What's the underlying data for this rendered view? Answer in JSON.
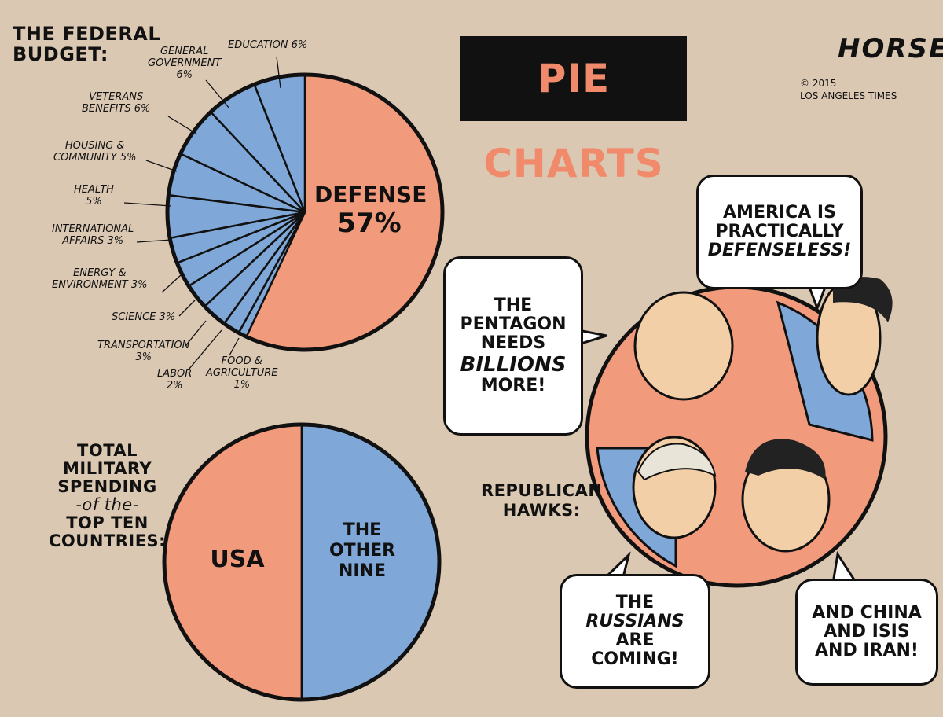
{
  "title": "PIE CHARTS",
  "signature": {
    "name": "HORSEY",
    "copyright": "© 2015",
    "publisher": "LOS ANGELES TIMES"
  },
  "colors": {
    "background": "#dbc8b2",
    "salmon": "#f29a7c",
    "blue": "#7fa7d8",
    "ink": "#111111",
    "title_text": "#f08a6a"
  },
  "chart_data": [
    {
      "type": "pie",
      "title": "THE FEDERAL BUDGET:",
      "categories": [
        "DEFENSE",
        "FOOD & AGRICULTURE",
        "LABOR",
        "TRANSPORTATION",
        "SCIENCE",
        "ENERGY & ENVIRONMENT",
        "INTERNATIONAL AFFAIRS",
        "HEALTH",
        "HOUSING & COMMUNITY",
        "VETERANS BENEFITS",
        "GENERAL GOVERNMENT",
        "EDUCATION"
      ],
      "values": [
        57,
        1,
        2,
        3,
        3,
        3,
        3,
        5,
        5,
        6,
        6,
        6
      ],
      "labels": [
        "DEFENSE 57%",
        "FOOD & AGRICULTURE 1%",
        "LABOR 2%",
        "TRANSPORTATION 3%",
        "SCIENCE 3%",
        "ENERGY & ENVIRONMENT 3%",
        "INTERNATIONAL AFFAIRS 3%",
        "HEALTH 5%",
        "HOUSING & COMMUNITY 5%",
        "VETERANS BENEFITS 6%",
        "GENERAL GOVERNMENT 6%",
        "EDUCATION 6%"
      ]
    },
    {
      "type": "pie",
      "title": "TOTAL MILITARY SPENDING -of the- TOP TEN COUNTRIES:",
      "categories": [
        "USA",
        "THE OTHER NINE"
      ],
      "values": [
        50,
        50
      ]
    }
  ],
  "budget_title_lines": [
    "THE FEDERAL",
    "BUDGET:"
  ],
  "military_title_lines": [
    "TOTAL",
    "MILITARY",
    "SPENDING",
    "-of the-",
    "TOP TEN",
    "COUNTRIES:"
  ],
  "defense_label": [
    "DEFENSE",
    "57%"
  ],
  "usa_label": "USA",
  "other_label": [
    "THE",
    "OTHER",
    "NINE"
  ],
  "small_labels": {
    "education": [
      "EDUCATION 6%"
    ],
    "general_government": [
      "GENERAL",
      "GOVERNMENT",
      "6%"
    ],
    "veterans": [
      "VETERANS",
      "BENEFITS 6%"
    ],
    "housing": [
      "HOUSING &",
      "COMMUNITY 5%"
    ],
    "health": [
      "HEALTH",
      "5%"
    ],
    "international": [
      "INTERNATIONAL",
      "AFFAIRS 3%"
    ],
    "energy": [
      "ENERGY &",
      "ENVIRONMENT 3%"
    ],
    "science": [
      "SCIENCE 3%"
    ],
    "transportation": [
      "TRANSPORTATION",
      "3%"
    ],
    "labor": [
      "LABOR",
      "2%"
    ],
    "food": [
      "FOOD &",
      "AGRICULTURE",
      "1%"
    ]
  },
  "hawks_label": [
    "REPUBLICAN",
    "HAWKS:"
  ],
  "bubbles": {
    "pentagon": [
      "THE",
      "PENTAGON",
      "NEEDS",
      "BILLIONS",
      "MORE!"
    ],
    "defenseless": [
      "AMERICA IS",
      "PRACTICALLY",
      "DEFENSELESS!"
    ],
    "russians": [
      "THE",
      "RUSSIANS",
      "ARE COMING!"
    ],
    "china": [
      "AND CHINA",
      "AND ISIS",
      "AND IRAN!"
    ]
  }
}
